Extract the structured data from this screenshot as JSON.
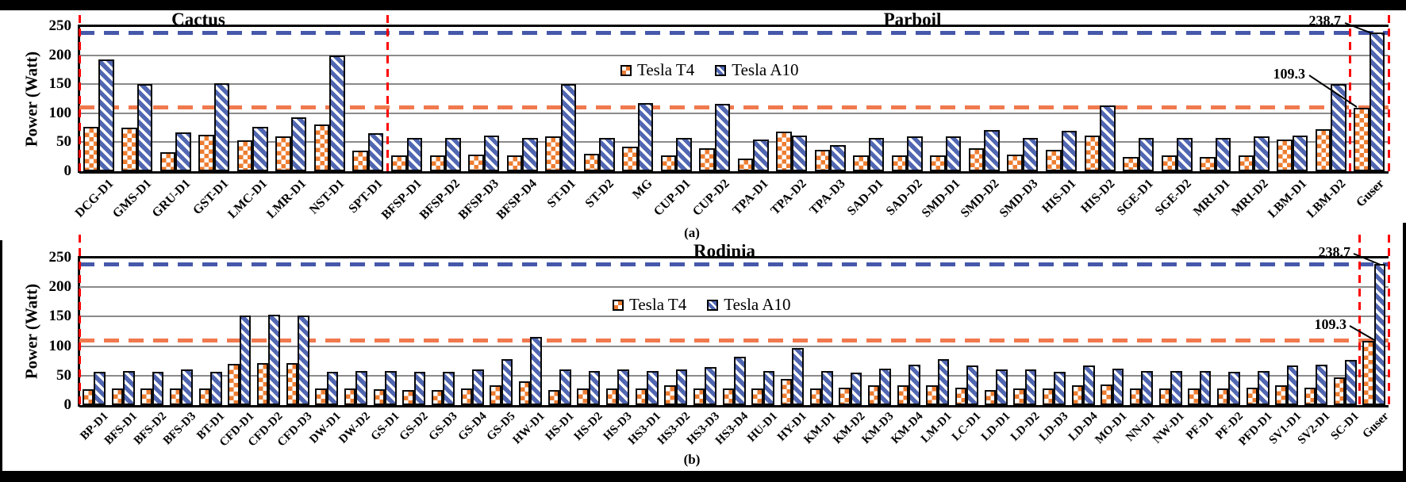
{
  "chart_data": [
    {
      "id": "a",
      "type": "bar",
      "caption": "(a)",
      "section_titles": [
        {
          "label": "Cactus",
          "from_category": 0,
          "to_category": 8
        },
        {
          "label": "Parboil",
          "from_category": 8,
          "to_category": 33
        }
      ],
      "ylabel": "Power (Watt)",
      "ylim": [
        0,
        250
      ],
      "yticks": [
        0,
        50,
        100,
        150,
        200,
        250
      ],
      "grid": true,
      "legend_position": "top-center",
      "categories": [
        "DCG-D1",
        "GMS-D1",
        "GRU-D1",
        "GST-D1",
        "LMC-D1",
        "LMR-D1",
        "NST-D1",
        "SPT-D1",
        "BFSP-D1",
        "BFSP-D2",
        "BFSP-D3",
        "BFSP-D4",
        "ST-D1",
        "ST-D2",
        "MG",
        "CUP-D1",
        "CUP-D2",
        "TPA-D1",
        "TPA-D2",
        "TPA-D3",
        "SAD-D1",
        "SAD-D2",
        "SMD-D1",
        "SMD-D2",
        "SMD-D3",
        "HIS-D1",
        "HIS-D2",
        "SGE-D1",
        "SGE-D2",
        "MRI-D1",
        "MRI-D2",
        "LBM-D1",
        "LBM-D2",
        "Guser"
      ],
      "series": [
        {
          "name": "Tesla T4",
          "pattern": "orange-checker",
          "color": "#ED7D31",
          "values": [
            76,
            75,
            33,
            63,
            53,
            60,
            81,
            36,
            28,
            28,
            29,
            28,
            60,
            30,
            42,
            28,
            40,
            22,
            68,
            37,
            28,
            28,
            28,
            40,
            29,
            37,
            62,
            25,
            27,
            25,
            28,
            55,
            72,
            109.3
          ]
        },
        {
          "name": "Tesla A10",
          "pattern": "blue-diagonal",
          "color": "#5167B2",
          "values": [
            192,
            150,
            67,
            151,
            77,
            93,
            199,
            66,
            58,
            58,
            61,
            58,
            150,
            57,
            117,
            57,
            116,
            55,
            62,
            45,
            58,
            60,
            60,
            71,
            57,
            70,
            113,
            57,
            58,
            57,
            60,
            62,
            150,
            238.7
          ]
        }
      ],
      "hlines": [
        {
          "value": 238.7,
          "label": "238.7",
          "color": "#4558AA",
          "style": "dashed"
        },
        {
          "value": 109.3,
          "label": "109.3",
          "color": "#F0794E",
          "style": "dashed"
        }
      ],
      "vline_category_boundaries": [
        0,
        8,
        33,
        34
      ],
      "vline_color": "#FF0000"
    },
    {
      "id": "b",
      "type": "bar",
      "caption": "(b)",
      "section_titles": [
        {
          "label": "Rodinia",
          "from_category": 0,
          "to_category": 44
        }
      ],
      "ylabel": "Power (Watt)",
      "ylim": [
        0,
        250
      ],
      "yticks": [
        0,
        50,
        100,
        150,
        200,
        250
      ],
      "grid": true,
      "legend_position": "top-center",
      "categories": [
        "BP-D1",
        "BFS-D1",
        "BFS-D2",
        "BFS-D3",
        "BT-D1",
        "CFD-D1",
        "CFD-D2",
        "CFD-D3",
        "DW-D1",
        "DW-D2",
        "GS-D1",
        "GS-D2",
        "GS-D3",
        "GS-D4",
        "GS-D5",
        "HW-D1",
        "HS-D1",
        "HS-D2",
        "HS-D3",
        "HS3-D1",
        "HS3-D2",
        "HS3-D3",
        "HS3-D4",
        "HU-D1",
        "HY-D1",
        "KM-D1",
        "KM-D2",
        "KM-D3",
        "KM-D4",
        "LM-D1",
        "LC-D1",
        "LD-D1",
        "LD-D2",
        "LD-D3",
        "LD-D4",
        "MO-D1",
        "NN-D1",
        "NW-D1",
        "PF-D1",
        "PF-D2",
        "PFD-D1",
        "SV1-D1",
        "SV2-D1",
        "SC-D1",
        "Guser"
      ],
      "series": [
        {
          "name": "Tesla T4",
          "pattern": "orange-checker",
          "color": "#ED7D31",
          "values": [
            27,
            28,
            28,
            28,
            28,
            70,
            71,
            71,
            28,
            28,
            27,
            26,
            26,
            28,
            33,
            40,
            25,
            28,
            28,
            28,
            33,
            28,
            28,
            28,
            45,
            28,
            30,
            33,
            33,
            33,
            30,
            25,
            28,
            28,
            33,
            35,
            28,
            28,
            28,
            28,
            30,
            33,
            30,
            47,
            109.3
          ]
        },
        {
          "name": "Tesla A10",
          "pattern": "blue-diagonal",
          "color": "#5167B2",
          "values": [
            57,
            58,
            57,
            60,
            56,
            152,
            153,
            152,
            57,
            58,
            58,
            57,
            57,
            60,
            78,
            116,
            60,
            58,
            60,
            58,
            60,
            65,
            82,
            58,
            97,
            58,
            55,
            62,
            68,
            78,
            67,
            60,
            60,
            56,
            67,
            62,
            58,
            58,
            58,
            57,
            58,
            67,
            68,
            77,
            238.7
          ]
        }
      ],
      "hlines": [
        {
          "value": 238.7,
          "label": "238.7",
          "color": "#4558AA",
          "style": "dashed"
        },
        {
          "value": 109.3,
          "label": "109.3",
          "color": "#F0794E",
          "style": "dashed"
        }
      ],
      "vline_category_boundaries": [
        0,
        44,
        45
      ],
      "vline_color": "#FF0000"
    }
  ]
}
